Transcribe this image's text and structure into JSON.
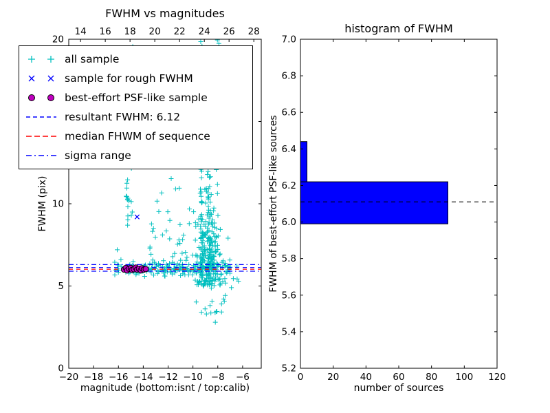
{
  "figure_bg": "#ffffff",
  "colors": {
    "cyan": "#00bfbf",
    "blue": "#0000ff",
    "magenta": "#bf00bf",
    "red": "#ff0000",
    "black": "#000000",
    "bar_fill": "#0000ff"
  },
  "chart_data": [
    {
      "type": "scatter",
      "title": "FWHM vs magnitudes",
      "xlabel": "magnitude (bottom:isnt / top:calib)",
      "ylabel": "FWHM (pix)",
      "xlim": [
        -20,
        -4.5
      ],
      "ylim": [
        0,
        20
      ],
      "grid": false,
      "xticks": {
        "values": [
          -20,
          -18,
          -16,
          -14,
          -12,
          -10,
          -8,
          -6
        ],
        "labels": [
          "−20",
          "−18",
          "−16",
          "−14",
          "−12",
          "−10",
          "−8",
          "−6"
        ]
      },
      "yticks": {
        "values": [
          0,
          5,
          10,
          15,
          20
        ],
        "labels": [
          "0",
          "5",
          "10",
          "15",
          "20"
        ]
      },
      "top_axis": {
        "lim": [
          13.05,
          28.6
        ],
        "ticks": {
          "values": [
            14,
            16,
            18,
            20,
            22,
            24,
            26,
            28
          ],
          "labels": [
            "14",
            "16",
            "18",
            "20",
            "22",
            "24",
            "26",
            "28"
          ]
        }
      },
      "legend": {
        "position": "upper left",
        "items": [
          {
            "label": "all sample",
            "marker": "plus",
            "color": "#00bfbf"
          },
          {
            "label": "sample for rough FWHM",
            "marker": "x",
            "color": "#0000ff"
          },
          {
            "label": "best-effort PSF-like sample",
            "marker": "circle",
            "color": "#bf00bf"
          },
          {
            "label": "resultant FWHM: 6.12",
            "marker": "dashed-line",
            "color": "#0000ff"
          },
          {
            "label": "median FHWM of sequence",
            "marker": "dashed-line",
            "color": "#ff0000"
          },
          {
            "label": "sigma range",
            "marker": "dashdot-line",
            "color": "#0000ff"
          }
        ]
      },
      "series": {
        "all_sample": {
          "marker": "+",
          "color": "#00bfbf",
          "clusters": [
            {
              "n": 170,
              "x": {
                "type": "uniform",
                "a": -16.3,
                "b": -7.0
              },
              "y": {
                "type": "normal",
                "mean": 6.05,
                "sd": 0.22
              }
            },
            {
              "n": 240,
              "x": {
                "type": "normal",
                "mean": -8.8,
                "sd": 0.5
              },
              "y": {
                "type": "absnormal",
                "base": 5.0,
                "scale": 2.6,
                "max": 13.5
              }
            },
            {
              "n": 45,
              "x": {
                "type": "normal",
                "mean": -9.35,
                "sd": 0.06
              },
              "y": {
                "type": "uniform",
                "a": 6.0,
                "b": 20.0
              }
            },
            {
              "n": 40,
              "x": {
                "type": "normal",
                "mean": -8.75,
                "sd": 0.06
              },
              "y": {
                "type": "uniform",
                "a": 6.5,
                "b": 20.0
              }
            },
            {
              "n": 26,
              "x": {
                "type": "normal",
                "mean": -15.25,
                "sd": 0.05
              },
              "y": {
                "type": "uniform",
                "a": 8.5,
                "b": 20.0
              }
            },
            {
              "n": 20,
              "x": {
                "type": "normal",
                "mean": -14.92,
                "sd": 0.05
              },
              "y": {
                "type": "uniform",
                "a": 9.0,
                "b": 20.0
              }
            },
            {
              "n": 16,
              "x": {
                "type": "uniform",
                "a": -15.35,
                "b": -14.8
              },
              "y": {
                "type": "uniform",
                "a": 12.0,
                "b": 20.0
              }
            },
            {
              "n": 38,
              "x": {
                "type": "uniform",
                "a": -13.6,
                "b": -10.2
              },
              "y": {
                "type": "absnormal",
                "base": 5.9,
                "scale": 2.2,
                "max": 12.5
              }
            },
            {
              "n": 26,
              "x": {
                "type": "uniform",
                "a": -9.8,
                "b": -7.4
              },
              "y": {
                "type": "uniform",
                "a": 3.3,
                "b": 5.6
              }
            },
            {
              "n": 18,
              "x": {
                "type": "normal",
                "mean": -8.2,
                "sd": 0.12
              },
              "y": {
                "type": "uniform",
                "a": 12.0,
                "b": 20.0
              }
            },
            {
              "n": 10,
              "x": {
                "type": "uniform",
                "a": -7.3,
                "b": -6.3
              },
              "y": {
                "type": "normal",
                "mean": 6.0,
                "sd": 0.6
              }
            }
          ],
          "extra_points": [
            [
              -8.2,
              2.8
            ],
            [
              -6.9,
              4.9
            ],
            [
              -16.1,
              7.2
            ],
            [
              -15.8,
              6.6
            ],
            [
              -10.5,
              12.8
            ],
            [
              -11.4,
              10.9
            ]
          ]
        },
        "rough_fwhm": {
          "marker": "x",
          "color": "#0000ff",
          "points": [
            [
              -14.5,
              9.2
            ],
            [
              -15.1,
              6.15
            ],
            [
              -14.05,
              6.1
            ]
          ]
        },
        "psf_like": {
          "marker": "o",
          "color": "#bf00bf",
          "edge_color": "#000000",
          "points": [
            [
              -15.55,
              6.0
            ],
            [
              -15.4,
              6.1
            ],
            [
              -15.3,
              5.95
            ],
            [
              -15.15,
              6.05
            ],
            [
              -15.0,
              6.1
            ],
            [
              -14.9,
              5.98
            ],
            [
              -14.75,
              6.02
            ],
            [
              -14.6,
              6.12
            ],
            [
              -14.5,
              6.0
            ],
            [
              -14.35,
              6.05
            ],
            [
              -14.2,
              5.95
            ],
            [
              -14.1,
              6.08
            ],
            [
              -13.95,
              6.0
            ],
            [
              -13.8,
              6.03
            ]
          ]
        }
      },
      "lines": [
        {
          "name": "sigma range upper",
          "y": 6.3,
          "style": "dashdot",
          "color": "#0000ff"
        },
        {
          "name": "resultant FWHM",
          "y": 6.12,
          "style": "dashed",
          "color": "#0000ff"
        },
        {
          "name": "median FHWM of sequence",
          "y": 6.02,
          "style": "dashed",
          "color": "#ff0000"
        },
        {
          "name": "sigma range lower",
          "y": 5.9,
          "style": "dashdot",
          "color": "#0000ff"
        }
      ]
    },
    {
      "type": "bar",
      "orientation": "horizontal",
      "title": "histogram of FWHM",
      "xlabel": "number of sources",
      "ylabel": "FWHM of best-effort PSF-like sources",
      "xlim": [
        0,
        120
      ],
      "ylim": [
        5.2,
        7.0
      ],
      "grid": false,
      "xticks": {
        "values": [
          0,
          20,
          40,
          60,
          80,
          100,
          120
        ],
        "labels": [
          "0",
          "20",
          "40",
          "60",
          "80",
          "100",
          "120"
        ]
      },
      "yticks": {
        "values": [
          5.2,
          5.4,
          5.6,
          5.8,
          6.0,
          6.2,
          6.4,
          6.6,
          6.8,
          7.0
        ],
        "labels": [
          "5.2",
          "5.4",
          "5.6",
          "5.8",
          "6.0",
          "6.2",
          "6.4",
          "6.6",
          "6.8",
          "7.0"
        ]
      },
      "bar_color": "#0000ff",
      "bars": [
        {
          "range": [
            5.99,
            6.22
          ],
          "count": 90
        },
        {
          "range": [
            6.22,
            6.44
          ],
          "count": 4
        }
      ],
      "median_line": {
        "y": 6.11,
        "style": "dashed",
        "color": "#000000"
      }
    }
  ]
}
